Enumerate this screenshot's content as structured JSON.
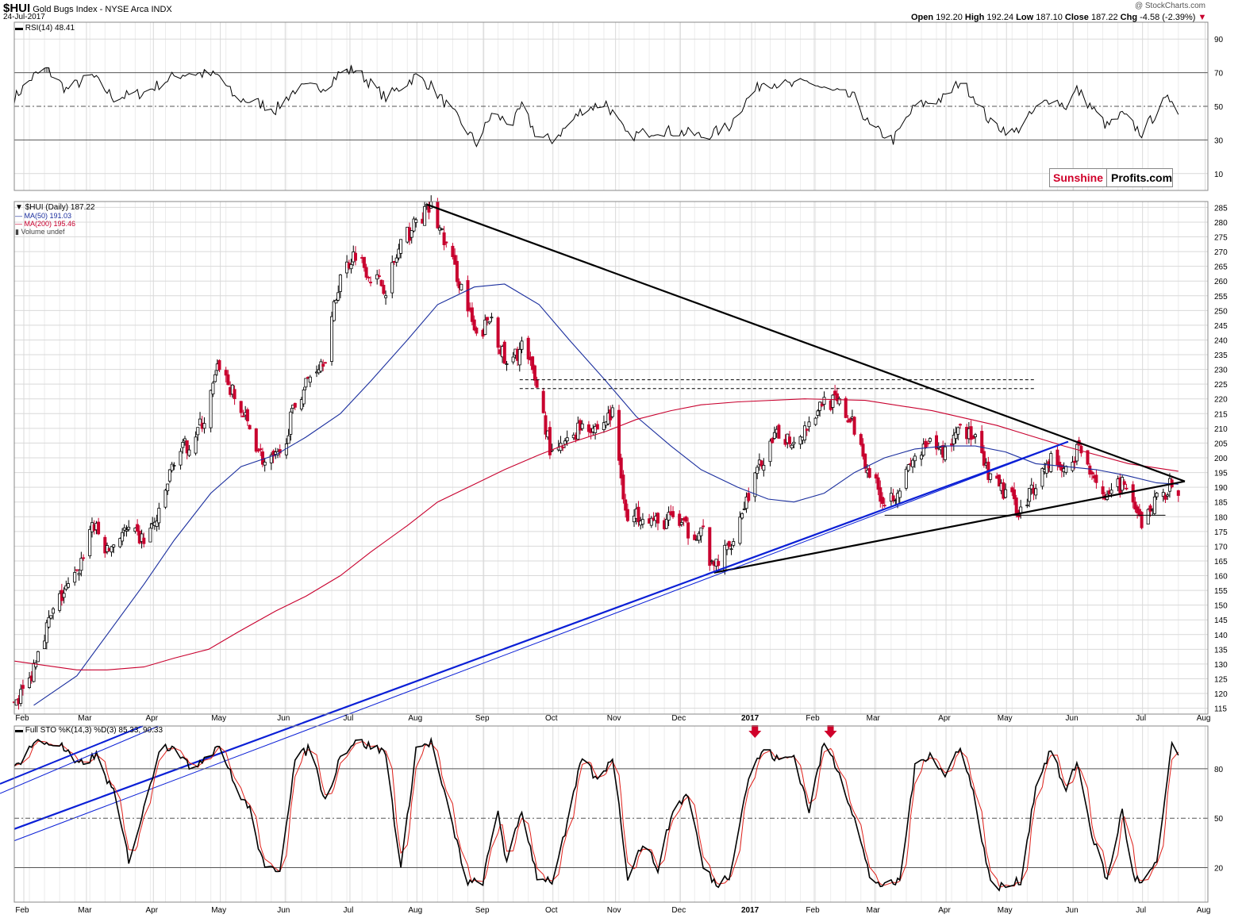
{
  "header": {
    "symbol": "$HUI",
    "name": "Gold Bugs Index",
    "exchange": "NYSE Arca  INDX",
    "date": "24-Jul-2017",
    "open_label": "Open",
    "open": "192.20",
    "high_label": "High",
    "high": "192.24",
    "low_label": "Low",
    "low": "187.10",
    "close_label": "Close",
    "close": "187.22",
    "chg_label": "Chg",
    "chg": "-4.58 (-2.39%)",
    "watermark": "@ StockCharts.com"
  },
  "brand": {
    "part1": "Sunshine",
    "part2": "Profits.com"
  },
  "colors": {
    "up": "#000000",
    "down": "#c8002e",
    "ma50": "#1a2e9e",
    "ma200": "#c8002e",
    "trend_blue": "#0a1fd6",
    "trend_black": "#000000",
    "grid": "#d9d9d9",
    "stoch_k": "#000000",
    "stoch_d": "#e0201a"
  },
  "rsi": {
    "label": "RSI(14) 48.41",
    "ticks": [
      "90",
      "70",
      "50",
      "30",
      "10"
    ]
  },
  "price_legend": {
    "main": "$HUI (Daily) 187.22",
    "ma50": "MA(50) 191.03",
    "ma200": "MA(200) 195.46",
    "volume": "Volume undef"
  },
  "stoch": {
    "label": "Full STO %K(14,3) %D(3) 85.33, 90.33",
    "ticks": [
      "80",
      "50",
      "20"
    ]
  },
  "chart_data": {
    "type": "candlestick",
    "title": "$HUI Gold Bugs Index NYSE Arca INDX",
    "price_ticks": [
      115,
      120,
      125,
      130,
      135,
      140,
      145,
      150,
      155,
      160,
      165,
      170,
      175,
      180,
      185,
      190,
      195,
      200,
      205,
      210,
      215,
      220,
      225,
      230,
      235,
      240,
      245,
      250,
      255,
      260,
      265,
      270,
      275,
      280,
      285
    ],
    "ylim": [
      113,
      287
    ],
    "months": [
      "Feb",
      "Mar",
      "Apr",
      "May",
      "Jun",
      "Jul",
      "Aug",
      "Sep",
      "Oct",
      "Nov",
      "Dec",
      "2017",
      "Feb",
      "Mar",
      "Apr",
      "May",
      "Jun",
      "Jul",
      "Aug"
    ],
    "close_anchors": [
      [
        "2016-02-01",
        117
      ],
      [
        "2016-02-08",
        124
      ],
      [
        "2016-02-12",
        136
      ],
      [
        "2016-02-22",
        152
      ],
      [
        "2016-03-01",
        160
      ],
      [
        "2016-03-08",
        178
      ],
      [
        "2016-03-15",
        168
      ],
      [
        "2016-03-22",
        175
      ],
      [
        "2016-04-01",
        172
      ],
      [
        "2016-04-08",
        180
      ],
      [
        "2016-04-15",
        200
      ],
      [
        "2016-04-22",
        205
      ],
      [
        "2016-04-29",
        213
      ],
      [
        "2016-05-06",
        232
      ],
      [
        "2016-05-13",
        220
      ],
      [
        "2016-05-20",
        210
      ],
      [
        "2016-05-27",
        198
      ],
      [
        "2016-06-03",
        200
      ],
      [
        "2016-06-10",
        218
      ],
      [
        "2016-06-17",
        228
      ],
      [
        "2016-06-24",
        235
      ],
      [
        "2016-07-01",
        262
      ],
      [
        "2016-07-08",
        270
      ],
      [
        "2016-07-15",
        262
      ],
      [
        "2016-07-22",
        258
      ],
      [
        "2016-07-29",
        272
      ],
      [
        "2016-08-05",
        280
      ],
      [
        "2016-08-12",
        285
      ],
      [
        "2016-08-19",
        272
      ],
      [
        "2016-08-26",
        258
      ],
      [
        "2016-09-02",
        240
      ],
      [
        "2016-09-09",
        248
      ],
      [
        "2016-09-16",
        230
      ],
      [
        "2016-09-23",
        238
      ],
      [
        "2016-09-30",
        225
      ],
      [
        "2016-10-07",
        200
      ],
      [
        "2016-10-14",
        205
      ],
      [
        "2016-10-21",
        212
      ],
      [
        "2016-10-28",
        210
      ],
      [
        "2016-11-04",
        215
      ],
      [
        "2016-11-11",
        178
      ],
      [
        "2016-11-18",
        182
      ],
      [
        "2016-11-25",
        177
      ],
      [
        "2016-12-02",
        180
      ],
      [
        "2016-12-09",
        175
      ],
      [
        "2016-12-16",
        175
      ],
      [
        "2016-12-20",
        162
      ],
      [
        "2016-12-28",
        170
      ],
      [
        "2017-01-06",
        188
      ],
      [
        "2017-01-13",
        200
      ],
      [
        "2017-01-20",
        208
      ],
      [
        "2017-01-27",
        206
      ],
      [
        "2017-02-03",
        212
      ],
      [
        "2017-02-10",
        220
      ],
      [
        "2017-02-17",
        218
      ],
      [
        "2017-02-24",
        210
      ],
      [
        "2017-03-03",
        195
      ],
      [
        "2017-03-10",
        185
      ],
      [
        "2017-03-17",
        190
      ],
      [
        "2017-03-24",
        200
      ],
      [
        "2017-03-31",
        204
      ],
      [
        "2017-04-07",
        202
      ],
      [
        "2017-04-14",
        212
      ],
      [
        "2017-04-21",
        205
      ],
      [
        "2017-04-28",
        192
      ],
      [
        "2017-05-05",
        188
      ],
      [
        "2017-05-12",
        182
      ],
      [
        "2017-05-19",
        192
      ],
      [
        "2017-05-26",
        200
      ],
      [
        "2017-06-02",
        195
      ],
      [
        "2017-06-07",
        203
      ],
      [
        "2017-06-14",
        196
      ],
      [
        "2017-06-21",
        185
      ],
      [
        "2017-06-28",
        192
      ],
      [
        "2017-07-03",
        182
      ],
      [
        "2017-07-07",
        178
      ],
      [
        "2017-07-14",
        186
      ],
      [
        "2017-07-21",
        191
      ],
      [
        "2017-07-24",
        187.22
      ]
    ],
    "ma50_anchors": [
      [
        "2016-02-10",
        116
      ],
      [
        "2016-03-01",
        126
      ],
      [
        "2016-03-15",
        140
      ],
      [
        "2016-04-01",
        157
      ],
      [
        "2016-04-15",
        172
      ],
      [
        "2016-05-02",
        188
      ],
      [
        "2016-05-16",
        197
      ],
      [
        "2016-06-01",
        201
      ],
      [
        "2016-06-15",
        207
      ],
      [
        "2016-07-01",
        215
      ],
      [
        "2016-07-15",
        226
      ],
      [
        "2016-08-01",
        240
      ],
      [
        "2016-08-15",
        252
      ],
      [
        "2016-09-01",
        258
      ],
      [
        "2016-09-15",
        259
      ],
      [
        "2016-10-01",
        252
      ],
      [
        "2016-10-15",
        240
      ],
      [
        "2016-11-01",
        226
      ],
      [
        "2016-11-15",
        214
      ],
      [
        "2016-12-01",
        204
      ],
      [
        "2016-12-15",
        196
      ],
      [
        "2017-01-01",
        190
      ],
      [
        "2017-01-15",
        186
      ],
      [
        "2017-01-27",
        185
      ],
      [
        "2017-02-10",
        188
      ],
      [
        "2017-02-24",
        195
      ],
      [
        "2017-03-10",
        200
      ],
      [
        "2017-03-24",
        203
      ],
      [
        "2017-04-07",
        204
      ],
      [
        "2017-04-21",
        204
      ],
      [
        "2017-05-05",
        202
      ],
      [
        "2017-05-19",
        198
      ],
      [
        "2017-06-02",
        197
      ],
      [
        "2017-06-16",
        196
      ],
      [
        "2017-06-30",
        194
      ],
      [
        "2017-07-14",
        191.5
      ],
      [
        "2017-07-24",
        191.03
      ]
    ],
    "ma200_anchors": [
      [
        "2016-02-01",
        131
      ],
      [
        "2016-03-01",
        128
      ],
      [
        "2016-03-15",
        128
      ],
      [
        "2016-04-01",
        129
      ],
      [
        "2016-04-15",
        132
      ],
      [
        "2016-05-01",
        135
      ],
      [
        "2016-05-15",
        141
      ],
      [
        "2016-06-01",
        148
      ],
      [
        "2016-06-15",
        153
      ],
      [
        "2016-07-01",
        160
      ],
      [
        "2016-07-15",
        168
      ],
      [
        "2016-08-01",
        177
      ],
      [
        "2016-08-15",
        185
      ],
      [
        "2016-09-01",
        191
      ],
      [
        "2016-09-15",
        196
      ],
      [
        "2016-10-01",
        201
      ],
      [
        "2016-10-15",
        205
      ],
      [
        "2016-11-01",
        209
      ],
      [
        "2016-11-15",
        213
      ],
      [
        "2016-12-01",
        216
      ],
      [
        "2016-12-15",
        218
      ],
      [
        "2017-01-01",
        219
      ],
      [
        "2017-02-01",
        220
      ],
      [
        "2017-03-01",
        219.5
      ],
      [
        "2017-04-01",
        216
      ],
      [
        "2017-05-01",
        211
      ],
      [
        "2017-06-01",
        204
      ],
      [
        "2017-07-01",
        198
      ],
      [
        "2017-07-24",
        195.46
      ]
    ],
    "rsi_anchors": [
      [
        "2016-02-01",
        55
      ],
      [
        "2016-02-10",
        68
      ],
      [
        "2016-02-16",
        72
      ],
      [
        "2016-02-25",
        60
      ],
      [
        "2016-03-08",
        68
      ],
      [
        "2016-03-18",
        55
      ],
      [
        "2016-04-01",
        58
      ],
      [
        "2016-04-15",
        68
      ],
      [
        "2016-04-22",
        70
      ],
      [
        "2016-05-06",
        68
      ],
      [
        "2016-05-13",
        55
      ],
      [
        "2016-05-24",
        52
      ],
      [
        "2016-06-01",
        48
      ],
      [
        "2016-06-10",
        60
      ],
      [
        "2016-06-24",
        62
      ],
      [
        "2016-07-01",
        70
      ],
      [
        "2016-07-08",
        72
      ],
      [
        "2016-07-22",
        55
      ],
      [
        "2016-08-05",
        68
      ],
      [
        "2016-08-12",
        62
      ],
      [
        "2016-08-26",
        40
      ],
      [
        "2016-09-02",
        28
      ],
      [
        "2016-09-09",
        45
      ],
      [
        "2016-09-19",
        40
      ],
      [
        "2016-09-23",
        50
      ],
      [
        "2016-09-30",
        32
      ],
      [
        "2016-10-07",
        30
      ],
      [
        "2016-10-14",
        38
      ],
      [
        "2016-10-21",
        48
      ],
      [
        "2016-11-01",
        52
      ],
      [
        "2016-11-11",
        32
      ],
      [
        "2016-11-25",
        36
      ],
      [
        "2016-12-09",
        34
      ],
      [
        "2016-12-16",
        32
      ],
      [
        "2016-12-28",
        38
      ],
      [
        "2017-01-04",
        52
      ],
      [
        "2017-01-13",
        65
      ],
      [
        "2017-01-27",
        62
      ],
      [
        "2017-02-03",
        65
      ],
      [
        "2017-02-10",
        60
      ],
      [
        "2017-02-24",
        55
      ],
      [
        "2017-03-03",
        38
      ],
      [
        "2017-03-14",
        30
      ],
      [
        "2017-03-24",
        50
      ],
      [
        "2017-04-07",
        55
      ],
      [
        "2017-04-14",
        65
      ],
      [
        "2017-04-21",
        55
      ],
      [
        "2017-04-28",
        40
      ],
      [
        "2017-05-09",
        34
      ],
      [
        "2017-05-19",
        48
      ],
      [
        "2017-05-26",
        55
      ],
      [
        "2017-06-02",
        50
      ],
      [
        "2017-06-07",
        60
      ],
      [
        "2017-06-21",
        38
      ],
      [
        "2017-06-28",
        45
      ],
      [
        "2017-07-07",
        34
      ],
      [
        "2017-07-17",
        52
      ],
      [
        "2017-07-21",
        55
      ],
      [
        "2017-07-24",
        48.41
      ]
    ],
    "stoch_k_anchors": [
      [
        "2016-02-01",
        80
      ],
      [
        "2016-02-10",
        96
      ],
      [
        "2016-02-22",
        95
      ],
      [
        "2016-03-01",
        82
      ],
      [
        "2016-03-10",
        88
      ],
      [
        "2016-03-18",
        65
      ],
      [
        "2016-03-25",
        25
      ],
      [
        "2016-04-01",
        55
      ],
      [
        "2016-04-08",
        92
      ],
      [
        "2016-04-15",
        95
      ],
      [
        "2016-04-22",
        80
      ],
      [
        "2016-05-02",
        90
      ],
      [
        "2016-05-06",
        95
      ],
      [
        "2016-05-13",
        70
      ],
      [
        "2016-05-20",
        55
      ],
      [
        "2016-05-27",
        18
      ],
      [
        "2016-06-03",
        20
      ],
      [
        "2016-06-10",
        85
      ],
      [
        "2016-06-17",
        93
      ],
      [
        "2016-06-24",
        60
      ],
      [
        "2016-07-01",
        88
      ],
      [
        "2016-07-08",
        97
      ],
      [
        "2016-07-22",
        90
      ],
      [
        "2016-07-29",
        18
      ],
      [
        "2016-08-05",
        92
      ],
      [
        "2016-08-12",
        96
      ],
      [
        "2016-08-19",
        60
      ],
      [
        "2016-08-29",
        10
      ],
      [
        "2016-09-05",
        12
      ],
      [
        "2016-09-12",
        55
      ],
      [
        "2016-09-16",
        22
      ],
      [
        "2016-09-23",
        55
      ],
      [
        "2016-09-30",
        15
      ],
      [
        "2016-10-07",
        12
      ],
      [
        "2016-10-14",
        45
      ],
      [
        "2016-10-21",
        88
      ],
      [
        "2016-10-28",
        72
      ],
      [
        "2016-11-04",
        88
      ],
      [
        "2016-11-11",
        15
      ],
      [
        "2016-11-18",
        35
      ],
      [
        "2016-11-25",
        20
      ],
      [
        "2016-12-02",
        55
      ],
      [
        "2016-12-09",
        65
      ],
      [
        "2016-12-16",
        20
      ],
      [
        "2016-12-22",
        10
      ],
      [
        "2016-12-28",
        15
      ],
      [
        "2017-01-06",
        75
      ],
      [
        "2017-01-13",
        92
      ],
      [
        "2017-01-20",
        85
      ],
      [
        "2017-01-27",
        88
      ],
      [
        "2017-02-03",
        55
      ],
      [
        "2017-02-10",
        96
      ],
      [
        "2017-02-17",
        78
      ],
      [
        "2017-02-24",
        50
      ],
      [
        "2017-03-03",
        15
      ],
      [
        "2017-03-10",
        8
      ],
      [
        "2017-03-17",
        12
      ],
      [
        "2017-03-24",
        80
      ],
      [
        "2017-03-31",
        90
      ],
      [
        "2017-04-07",
        75
      ],
      [
        "2017-04-14",
        95
      ],
      [
        "2017-04-21",
        60
      ],
      [
        "2017-04-28",
        10
      ],
      [
        "2017-05-05",
        8
      ],
      [
        "2017-05-12",
        12
      ],
      [
        "2017-05-19",
        70
      ],
      [
        "2017-05-26",
        92
      ],
      [
        "2017-06-02",
        65
      ],
      [
        "2017-06-07",
        85
      ],
      [
        "2017-06-14",
        40
      ],
      [
        "2017-06-21",
        12
      ],
      [
        "2017-06-28",
        55
      ],
      [
        "2017-07-03",
        15
      ],
      [
        "2017-07-07",
        10
      ],
      [
        "2017-07-14",
        22
      ],
      [
        "2017-07-21",
        96
      ],
      [
        "2017-07-24",
        85.33
      ]
    ],
    "trendlines": [
      {
        "name": "upper-resistance",
        "color": "#000000",
        "from": [
          "2016-08-10",
          286
        ],
        "to": [
          "2017-07-27",
          192
        ]
      },
      {
        "name": "lower-support",
        "color": "#000000",
        "from": [
          "2016-12-21",
          161
        ],
        "to": [
          "2017-07-27",
          192
        ]
      },
      {
        "name": "blue-thick",
        "color": "#0a1fd6",
        "from": [
          "2016-02-01",
          74
        ],
        "to": [
          "2017-06-03",
          205.5
        ]
      },
      {
        "name": "blue-thin",
        "color": "#0a1fd6",
        "from": [
          "2016-02-01",
          70
        ],
        "to": [
          "2017-05-27",
          203.5
        ]
      },
      {
        "name": "support-180",
        "color": "#000000",
        "from": [
          "2017-03-10",
          180.5
        ],
        "to": [
          "2017-07-18",
          180.5
        ]
      },
      {
        "name": "dashed-226",
        "color": "#000000",
        "from": [
          "2016-09-22",
          226.5
        ],
        "to": [
          "2017-05-19",
          226.5
        ],
        "dashed": true
      },
      {
        "name": "dashed-223",
        "color": "#000000",
        "from": [
          "2016-09-22",
          223.5
        ],
        "to": [
          "2017-05-19",
          223.5
        ],
        "dashed": true
      }
    ],
    "arrows": [
      "2017-01-06",
      "2017-02-10"
    ]
  }
}
